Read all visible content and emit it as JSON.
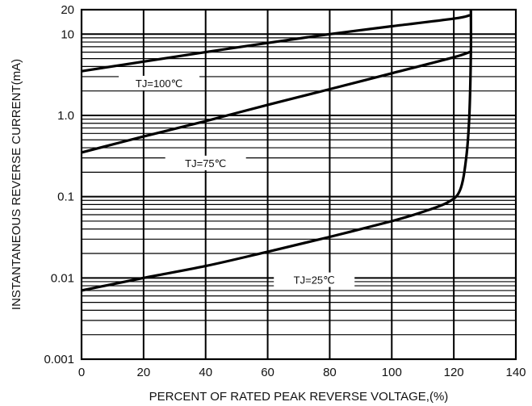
{
  "chart_data": {
    "type": "line",
    "title": "",
    "xlabel": "PERCENT OF RATED PEAK REVERSE VOLTAGE,(%)",
    "ylabel": "INSTANTANEOUS REVERSE CURRENT(mA)",
    "xlim": [
      0,
      140
    ],
    "ylim": [
      0.001,
      20
    ],
    "yscale": "log",
    "grid": true,
    "x_ticks": [
      "0",
      "20",
      "40",
      "60",
      "80",
      "100",
      "120",
      "140"
    ],
    "y_ticks": [
      {
        "value": 20,
        "label": "20"
      },
      {
        "value": 10,
        "label": "10"
      },
      {
        "value": 1,
        "label": "1.0"
      },
      {
        "value": 0.1,
        "label": "0.1"
      },
      {
        "value": 0.01,
        "label": "0.01"
      },
      {
        "value": 0.001,
        "label": "0.001"
      }
    ],
    "series": [
      {
        "name": "TJ=100℃",
        "x": [
          0,
          20,
          40,
          60,
          80,
          100,
          120,
          125
        ],
        "y": [
          3.5,
          4.6,
          6.0,
          7.8,
          10.0,
          12.5,
          15.5,
          17.0
        ]
      },
      {
        "name": "TJ=75℃",
        "x": [
          0,
          20,
          40,
          60,
          80,
          100,
          120,
          125
        ],
        "y": [
          0.35,
          0.55,
          0.85,
          1.35,
          2.1,
          3.3,
          5.2,
          6.0
        ]
      },
      {
        "name": "TJ=25℃",
        "x": [
          0,
          20,
          40,
          60,
          80,
          100,
          110,
          118,
          122,
          124,
          125,
          125.5,
          125.5
        ],
        "y": [
          0.007,
          0.01,
          0.014,
          0.021,
          0.032,
          0.05,
          0.065,
          0.085,
          0.12,
          0.3,
          1.0,
          6.0,
          20.0
        ]
      }
    ]
  }
}
